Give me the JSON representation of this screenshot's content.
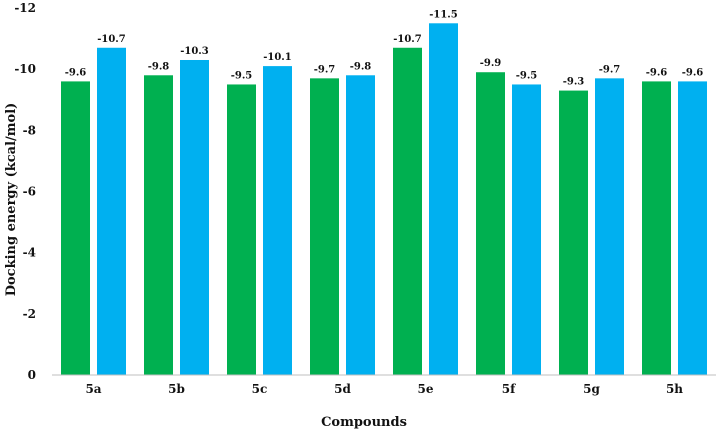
{
  "chart_data": {
    "type": "bar",
    "title": "",
    "xlabel": "Compounds",
    "ylabel": "Docking energy (kcal/mol)",
    "categories": [
      "5a",
      "5b",
      "5c",
      "5d",
      "5e",
      "5f",
      "5g",
      "5h"
    ],
    "series": [
      {
        "color": "#00b050",
        "values": [
          -9.6,
          -9.8,
          -9.5,
          -9.7,
          -10.7,
          -9.9,
          -9.3,
          -9.6
        ]
      },
      {
        "color": "#00b0f0",
        "values": [
          -10.7,
          -10.3,
          -10.1,
          -9.8,
          -11.5,
          -9.5,
          -9.7,
          -9.6
        ]
      }
    ],
    "ylim": [
      0,
      -12
    ],
    "yticks": [
      0,
      -2,
      -4,
      -6,
      -8,
      -10,
      -12
    ],
    "ytick_labels": [
      "0",
      "-2",
      "-4",
      "-6",
      "-8",
      "-10",
      "-12"
    ],
    "data_labels": [
      [
        "-9.6",
        "-9.8",
        "-9.5",
        "-9.7",
        "-10.7",
        "-9.9",
        "-9.3",
        "-9.6"
      ],
      [
        "-10.7",
        "-10.3",
        "-10.1",
        "-9.8",
        "-11.5",
        "-9.5",
        "-9.7",
        "-9.6"
      ]
    ],
    "grid": false,
    "legend": "none"
  }
}
